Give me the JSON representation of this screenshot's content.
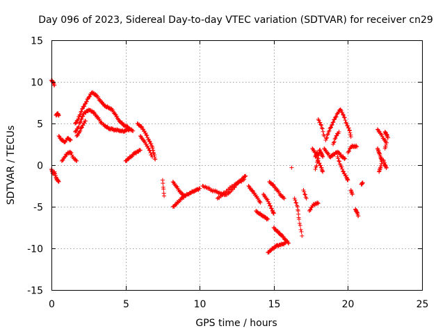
{
  "chart_data": {
    "type": "scatter",
    "title": "Day 096 of 2023, Sidereal Day-to-day VTEC variation (SDTVAR) for receiver cn29",
    "xlabel": "GPS time / hours",
    "ylabel": "SDTVAR / TECUs",
    "xlim": [
      0,
      25
    ],
    "ylim": [
      -15,
      15
    ],
    "xticks": [
      "0",
      "5",
      "10",
      "15",
      "20",
      "25"
    ],
    "yticks": [
      "15",
      "10",
      "5",
      "0",
      "-5",
      "-10",
      "-15"
    ],
    "grid": true,
    "marker": "+",
    "series": [
      {
        "name": "SDTVAR",
        "color": "#ff0000",
        "segments": [
          [
            [
              0.0,
              10.2
            ],
            [
              0.1,
              10.0
            ],
            [
              0.2,
              9.6
            ]
          ],
          [
            [
              0.0,
              -0.5
            ],
            [
              0.1,
              -1.0
            ],
            [
              0.2,
              -0.8
            ],
            [
              0.3,
              -1.5
            ],
            [
              0.4,
              -1.8
            ],
            [
              0.5,
              -2.0
            ]
          ],
          [
            [
              0.3,
              6.0
            ],
            [
              0.4,
              6.2
            ],
            [
              0.5,
              6.0
            ]
          ],
          [
            [
              0.5,
              3.5
            ],
            [
              0.7,
              3.0
            ],
            [
              0.9,
              2.8
            ],
            [
              1.1,
              3.2
            ],
            [
              1.3,
              3.0
            ]
          ],
          [
            [
              0.7,
              0.5
            ],
            [
              0.9,
              1.0
            ],
            [
              1.1,
              1.5
            ],
            [
              1.3,
              1.5
            ],
            [
              1.5,
              0.8
            ],
            [
              1.7,
              0.5
            ]
          ],
          [
            [
              1.6,
              5.0
            ],
            [
              1.8,
              5.5
            ],
            [
              1.9,
              6.0
            ],
            [
              2.1,
              6.8
            ],
            [
              2.3,
              7.4
            ],
            [
              2.5,
              8.1
            ],
            [
              2.7,
              8.7
            ],
            [
              2.9,
              8.6
            ],
            [
              3.1,
              8.2
            ],
            [
              3.3,
              7.7
            ],
            [
              3.5,
              7.3
            ],
            [
              3.7,
              7.0
            ],
            [
              3.9,
              6.9
            ],
            [
              4.1,
              6.6
            ],
            [
              4.3,
              6.1
            ],
            [
              4.5,
              5.5
            ],
            [
              4.7,
              5.1
            ],
            [
              4.9,
              4.8
            ],
            [
              5.1,
              4.6
            ],
            [
              5.3,
              4.3
            ],
            [
              5.5,
              4.1
            ]
          ],
          [
            [
              1.6,
              4.0
            ],
            [
              1.8,
              4.5
            ],
            [
              2.0,
              5.5
            ],
            [
              2.2,
              6.2
            ],
            [
              2.4,
              6.5
            ],
            [
              2.6,
              6.6
            ],
            [
              2.8,
              6.4
            ],
            [
              3.0,
              6.0
            ],
            [
              3.2,
              5.5
            ],
            [
              3.4,
              5.0
            ]
          ],
          [
            [
              1.7,
              3.5
            ],
            [
              1.9,
              4.0
            ],
            [
              2.1,
              4.8
            ],
            [
              2.3,
              5.3
            ]
          ],
          [
            [
              3.5,
              4.9
            ],
            [
              3.7,
              4.6
            ],
            [
              3.9,
              4.4
            ],
            [
              4.1,
              4.3
            ],
            [
              4.3,
              4.2
            ],
            [
              4.5,
              4.2
            ],
            [
              4.7,
              4.1
            ],
            [
              4.9,
              4.1
            ],
            [
              5.1,
              4.2
            ],
            [
              5.3,
              4.3
            ]
          ],
          [
            [
              5.0,
              0.5
            ],
            [
              5.2,
              0.8
            ],
            [
              5.4,
              1.1
            ],
            [
              5.6,
              1.4
            ],
            [
              5.8,
              1.6
            ],
            [
              6.0,
              1.8
            ]
          ],
          [
            [
              5.8,
              5.0
            ],
            [
              6.0,
              4.7
            ],
            [
              6.2,
              4.3
            ],
            [
              6.4,
              3.6
            ],
            [
              6.6,
              2.9
            ],
            [
              6.8,
              2.2
            ],
            [
              6.9,
              1.4
            ],
            [
              7.0,
              0.7
            ]
          ],
          [
            [
              6.0,
              3.5
            ],
            [
              6.2,
              3.0
            ],
            [
              6.4,
              2.5
            ],
            [
              6.6,
              1.8
            ],
            [
              6.8,
              1.0
            ]
          ],
          [
            [
              7.5,
              -1.8
            ],
            [
              7.6,
              -3.7
            ]
          ],
          [
            [
              8.2,
              -5.0
            ],
            [
              8.4,
              -4.7
            ],
            [
              8.6,
              -4.3
            ],
            [
              8.8,
              -4.0
            ],
            [
              9.0,
              -3.7
            ],
            [
              9.2,
              -3.5
            ],
            [
              9.4,
              -3.3
            ],
            [
              9.6,
              -3.1
            ],
            [
              9.8,
              -3.0
            ],
            [
              10.0,
              -2.8
            ]
          ],
          [
            [
              8.2,
              -2.0
            ],
            [
              8.4,
              -2.5
            ],
            [
              8.6,
              -3.0
            ],
            [
              8.8,
              -3.5
            ],
            [
              9.0,
              -3.7
            ]
          ],
          [
            [
              10.2,
              -2.5
            ],
            [
              10.5,
              -2.7
            ],
            [
              10.8,
              -3.0
            ],
            [
              11.1,
              -3.2
            ],
            [
              11.4,
              -3.4
            ],
            [
              11.7,
              -3.6
            ],
            [
              12.0,
              -3.3
            ],
            [
              12.3,
              -2.7
            ],
            [
              12.6,
              -2.1
            ],
            [
              12.9,
              -1.6
            ],
            [
              13.1,
              -1.3
            ]
          ],
          [
            [
              11.2,
              -4.0
            ],
            [
              11.5,
              -3.6
            ],
            [
              11.8,
              -3.1
            ],
            [
              12.1,
              -2.7
            ],
            [
              12.4,
              -2.3
            ],
            [
              12.7,
              -2.0
            ],
            [
              13.0,
              -1.7
            ]
          ],
          [
            [
              13.3,
              -2.5
            ],
            [
              13.5,
              -3.0
            ],
            [
              13.7,
              -3.4
            ],
            [
              13.9,
              -4.0
            ],
            [
              14.1,
              -4.5
            ]
          ],
          [
            [
              13.8,
              -5.5
            ],
            [
              14.0,
              -5.8
            ],
            [
              14.2,
              -6.0
            ],
            [
              14.4,
              -6.3
            ],
            [
              14.6,
              -6.5
            ]
          ],
          [
            [
              14.3,
              -3.5
            ],
            [
              14.5,
              -4.0
            ],
            [
              14.7,
              -4.6
            ],
            [
              14.9,
              -5.5
            ],
            [
              15.0,
              -5.8
            ]
          ],
          [
            [
              14.6,
              -10.5
            ],
            [
              14.8,
              -10.2
            ],
            [
              15.0,
              -9.9
            ],
            [
              15.2,
              -9.7
            ],
            [
              15.4,
              -9.6
            ],
            [
              15.6,
              -9.5
            ],
            [
              15.8,
              -9.3
            ]
          ],
          [
            [
              14.7,
              -2.0
            ],
            [
              14.9,
              -2.3
            ],
            [
              15.1,
              -2.7
            ],
            [
              15.3,
              -3.2
            ],
            [
              15.5,
              -3.7
            ],
            [
              15.7,
              -4.0
            ]
          ],
          [
            [
              15.0,
              -7.5
            ],
            [
              15.2,
              -7.9
            ],
            [
              15.4,
              -8.2
            ],
            [
              15.6,
              -8.6
            ],
            [
              15.8,
              -9.0
            ],
            [
              16.0,
              -9.4
            ]
          ],
          [
            [
              16.2,
              -0.3
            ]
          ],
          [
            [
              16.4,
              -4.0
            ],
            [
              16.6,
              -5.0
            ],
            [
              16.7,
              -6.5
            ],
            [
              16.9,
              -8.5
            ]
          ],
          [
            [
              17.0,
              -3.0
            ],
            [
              17.2,
              -4.0
            ]
          ],
          [
            [
              17.4,
              -5.5
            ],
            [
              17.6,
              -4.9
            ],
            [
              17.8,
              -4.6
            ],
            [
              18.0,
              -4.6
            ]
          ],
          [
            [
              17.8,
              1.0
            ],
            [
              17.9,
              1.5
            ],
            [
              18.0,
              1.2
            ],
            [
              18.1,
              1.8
            ],
            [
              18.2,
              1.4
            ],
            [
              18.3,
              1.0
            ]
          ],
          [
            [
              17.6,
              2.0
            ],
            [
              17.8,
              1.5
            ],
            [
              18.0,
              0.5
            ],
            [
              18.2,
              -0.3
            ],
            [
              18.3,
              -0.8
            ]
          ],
          [
            [
              17.8,
              -0.5
            ],
            [
              18.0,
              0.8
            ]
          ],
          [
            [
              18.0,
              5.5
            ],
            [
              18.2,
              4.8
            ],
            [
              18.4,
              3.5
            ]
          ],
          [
            [
              18.4,
              2.0
            ],
            [
              18.6,
              1.5
            ],
            [
              18.8,
              1.0
            ],
            [
              19.0,
              1.2
            ],
            [
              19.2,
              1.5
            ],
            [
              19.4,
              1.5
            ],
            [
              19.6,
              1.0
            ],
            [
              19.8,
              0.8
            ]
          ],
          [
            [
              18.5,
              3.0
            ],
            [
              18.7,
              4.0
            ],
            [
              18.9,
              4.8
            ],
            [
              19.1,
              5.5
            ],
            [
              19.3,
              6.2
            ],
            [
              19.5,
              6.7
            ],
            [
              19.7,
              6.0
            ],
            [
              19.9,
              5.0
            ],
            [
              20.1,
              4.2
            ],
            [
              20.2,
              3.4
            ]
          ],
          [
            [
              19.0,
              2.5
            ],
            [
              19.2,
              3.5
            ],
            [
              19.4,
              4.0
            ]
          ],
          [
            [
              19.3,
              1.0
            ],
            [
              19.5,
              0.0
            ],
            [
              19.7,
              -0.8
            ],
            [
              19.9,
              -1.5
            ],
            [
              20.0,
              -1.8
            ]
          ],
          [
            [
              20.0,
              1.5
            ],
            [
              20.2,
              2.2
            ],
            [
              20.4,
              2.3
            ],
            [
              20.6,
              2.2
            ]
          ],
          [
            [
              20.2,
              -3.0
            ],
            [
              20.3,
              -3.5
            ]
          ],
          [
            [
              20.5,
              -5.3
            ],
            [
              20.6,
              -5.6
            ],
            [
              20.7,
              -6.1
            ]
          ],
          [
            [
              20.9,
              -2.3
            ],
            [
              21.0,
              -2.1
            ]
          ],
          [
            [
              22.0,
              2.0
            ],
            [
              22.1,
              1.5
            ],
            [
              22.2,
              1.0
            ],
            [
              22.3,
              0.5
            ],
            [
              22.2,
              -0.3
            ],
            [
              22.1,
              -0.8
            ]
          ],
          [
            [
              22.0,
              4.3
            ],
            [
              22.2,
              3.8
            ],
            [
              22.4,
              3.2
            ],
            [
              22.6,
              2.7
            ],
            [
              22.5,
              2.0
            ]
          ],
          [
            [
              22.4,
              0.6
            ],
            [
              22.5,
              0.0
            ],
            [
              22.6,
              -0.3
            ]
          ],
          [
            [
              22.5,
              4.0
            ],
            [
              22.6,
              3.7
            ],
            [
              22.7,
              3.3
            ]
          ]
        ]
      }
    ]
  }
}
